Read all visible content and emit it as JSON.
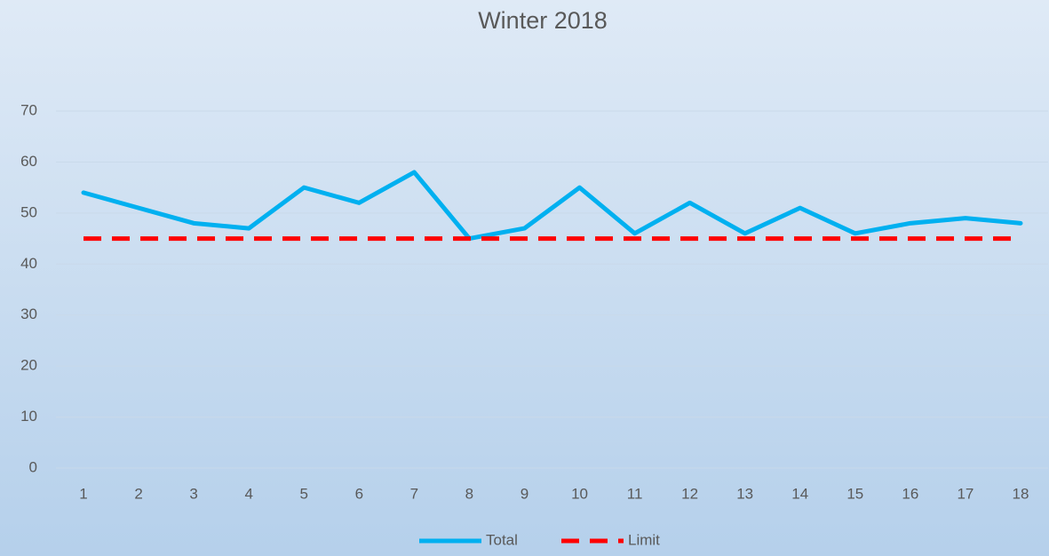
{
  "chart_data": {
    "type": "line",
    "title": "Winter 2018",
    "categories": [
      "1",
      "2",
      "3",
      "4",
      "5",
      "6",
      "7",
      "8",
      "9",
      "10",
      "11",
      "12",
      "13",
      "14",
      "15",
      "16",
      "17",
      "18"
    ],
    "series": [
      {
        "name": "Total",
        "color": "#00b0f0",
        "dashed": false,
        "values": [
          54,
          51,
          48,
          47,
          55,
          52,
          58,
          45,
          47,
          55,
          46,
          52,
          46,
          51,
          46,
          48,
          49,
          48
        ]
      },
      {
        "name": "Limit",
        "color": "#ff0000",
        "dashed": true,
        "values": [
          45,
          45,
          45,
          45,
          45,
          45,
          45,
          45,
          45,
          45,
          45,
          45,
          45,
          45,
          45,
          45,
          45,
          45
        ]
      }
    ],
    "ylim": [
      0,
      70
    ],
    "yticks": [
      0,
      10,
      20,
      30,
      40,
      50,
      60,
      70
    ],
    "grid": true,
    "legend": "bottom"
  }
}
